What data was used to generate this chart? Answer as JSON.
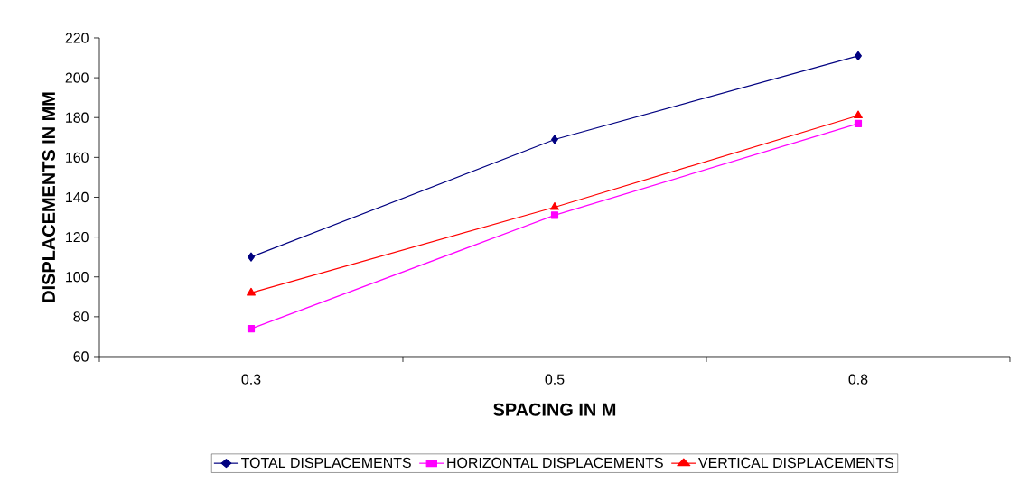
{
  "chart_data": {
    "type": "line",
    "xlabel": "SPACING IN M",
    "ylabel": "DISPLACEMENTS IN MM",
    "categories": [
      "0.3",
      "0.5",
      "0.8"
    ],
    "series": [
      {
        "name": "TOTAL DISPLACEMENTS",
        "color": "#000080",
        "marker": "diamond",
        "values": [
          110,
          169,
          211
        ]
      },
      {
        "name": "HORIZONTAL DISPLACEMENTS",
        "color": "#ff00ff",
        "marker": "square",
        "values": [
          74,
          131,
          177
        ]
      },
      {
        "name": "VERTICAL DISPLACEMENTS",
        "color": "#ff0000",
        "marker": "triangle",
        "values": [
          92,
          135,
          181
        ]
      }
    ],
    "ylim": [
      60,
      220
    ],
    "yticks": [
      60,
      80,
      100,
      120,
      140,
      160,
      180,
      200,
      220
    ],
    "grid": false,
    "legend": "bottom",
    "line_style": "solid"
  }
}
